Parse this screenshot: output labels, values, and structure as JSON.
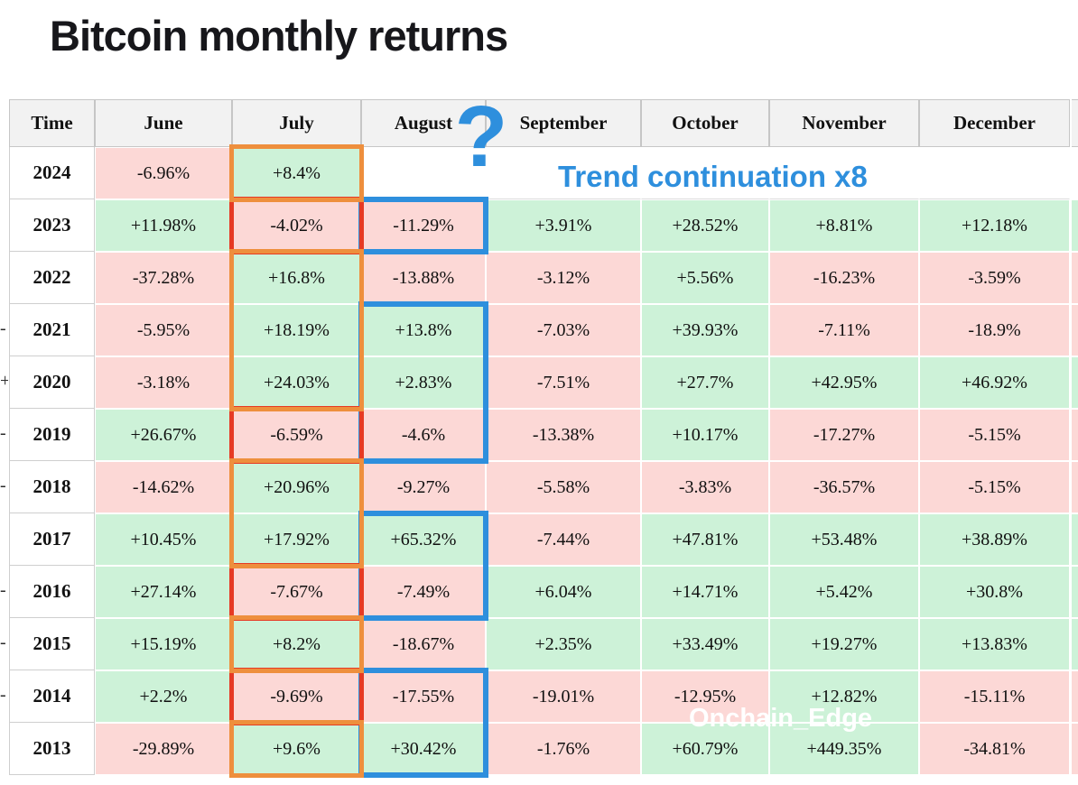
{
  "title": "Bitcoin monthly returns",
  "watermark": "Onchain_Edge",
  "annotations": {
    "question_mark": "?",
    "trend_label": "Trend continuation x8"
  },
  "colors": {
    "positive_bg": "#cdf2d8",
    "negative_bg": "#fcd8d6",
    "header_bg": "#f2f2f2",
    "orange_box": "#ee8f3d",
    "red_box": "#e63a24",
    "blue_box": "#2e8fdd"
  },
  "chart_data": {
    "type": "table",
    "title": "Bitcoin monthly returns",
    "columns": [
      "Time",
      "June",
      "July",
      "August",
      "September",
      "October",
      "November",
      "December"
    ],
    "rows": [
      {
        "year": "2024",
        "values": [
          "-6.96%",
          "+8.4%",
          "",
          "",
          "",
          "",
          ""
        ]
      },
      {
        "year": "2023",
        "values": [
          "+11.98%",
          "-4.02%",
          "-11.29%",
          "+3.91%",
          "+28.52%",
          "+8.81%",
          "+12.18%"
        ]
      },
      {
        "year": "2022",
        "values": [
          "-37.28%",
          "+16.8%",
          "-13.88%",
          "-3.12%",
          "+5.56%",
          "-16.23%",
          "-3.59%"
        ]
      },
      {
        "year": "2021",
        "values": [
          "-5.95%",
          "+18.19%",
          "+13.8%",
          "-7.03%",
          "+39.93%",
          "-7.11%",
          "-18.9%"
        ]
      },
      {
        "year": "2020",
        "values": [
          "-3.18%",
          "+24.03%",
          "+2.83%",
          "-7.51%",
          "+27.7%",
          "+42.95%",
          "+46.92%"
        ]
      },
      {
        "year": "2019",
        "values": [
          "+26.67%",
          "-6.59%",
          "-4.6%",
          "-13.38%",
          "+10.17%",
          "-17.27%",
          "-5.15%"
        ]
      },
      {
        "year": "2018",
        "values": [
          "-14.62%",
          "+20.96%",
          "-9.27%",
          "-5.58%",
          "-3.83%",
          "-36.57%",
          "-5.15%"
        ]
      },
      {
        "year": "2017",
        "values": [
          "+10.45%",
          "+17.92%",
          "+65.32%",
          "-7.44%",
          "+47.81%",
          "+53.48%",
          "+38.89%"
        ]
      },
      {
        "year": "2016",
        "values": [
          "+27.14%",
          "-7.67%",
          "-7.49%",
          "+6.04%",
          "+14.71%",
          "+5.42%",
          "+30.8%"
        ]
      },
      {
        "year": "2015",
        "values": [
          "+15.19%",
          "+8.2%",
          "-18.67%",
          "+2.35%",
          "+33.49%",
          "+19.27%",
          "+13.83%"
        ]
      },
      {
        "year": "2014",
        "values": [
          "+2.2%",
          "-9.69%",
          "-17.55%",
          "-19.01%",
          "-12.95%",
          "+12.82%",
          "-15.11%"
        ]
      },
      {
        "year": "2013",
        "values": [
          "-29.89%",
          "+9.6%",
          "+30.42%",
          "-1.76%",
          "+60.79%",
          "+449.35%",
          "-34.81%"
        ]
      }
    ]
  },
  "highlight_boxes": [
    {
      "color": "orange",
      "column": "July",
      "from_year": "2024",
      "to_year": "2024"
    },
    {
      "color": "orange",
      "column": "July",
      "from_year": "2022",
      "to_year": "2020"
    },
    {
      "color": "orange",
      "column": "July",
      "from_year": "2018",
      "to_year": "2017"
    },
    {
      "color": "orange",
      "column": "July",
      "from_year": "2015",
      "to_year": "2015"
    },
    {
      "color": "orange",
      "column": "July",
      "from_year": "2013",
      "to_year": "2013"
    },
    {
      "color": "red",
      "column": "July",
      "from_year": "2023",
      "to_year": "2023"
    },
    {
      "color": "red",
      "column": "July",
      "from_year": "2019",
      "to_year": "2019"
    },
    {
      "color": "red",
      "column": "July",
      "from_year": "2016",
      "to_year": "2016"
    },
    {
      "color": "red",
      "column": "July",
      "from_year": "2014",
      "to_year": "2014"
    },
    {
      "color": "blue",
      "column": "August",
      "from_year": "2023",
      "to_year": "2023"
    },
    {
      "color": "blue",
      "column": "August",
      "from_year": "2021",
      "to_year": "2019"
    },
    {
      "color": "blue",
      "column": "August",
      "from_year": "2017",
      "to_year": "2016"
    },
    {
      "color": "blue",
      "column": "August",
      "from_year": "2014",
      "to_year": "2013"
    }
  ],
  "edge_fragments": [
    {
      "year": "2021",
      "text": "-"
    },
    {
      "year": "2020",
      "text": "+"
    },
    {
      "year": "2019",
      "text": "-"
    },
    {
      "year": "2018",
      "text": "-"
    },
    {
      "year": "2016",
      "text": "-"
    },
    {
      "year": "2015",
      "text": "-"
    },
    {
      "year": "2014",
      "text": "-"
    }
  ]
}
